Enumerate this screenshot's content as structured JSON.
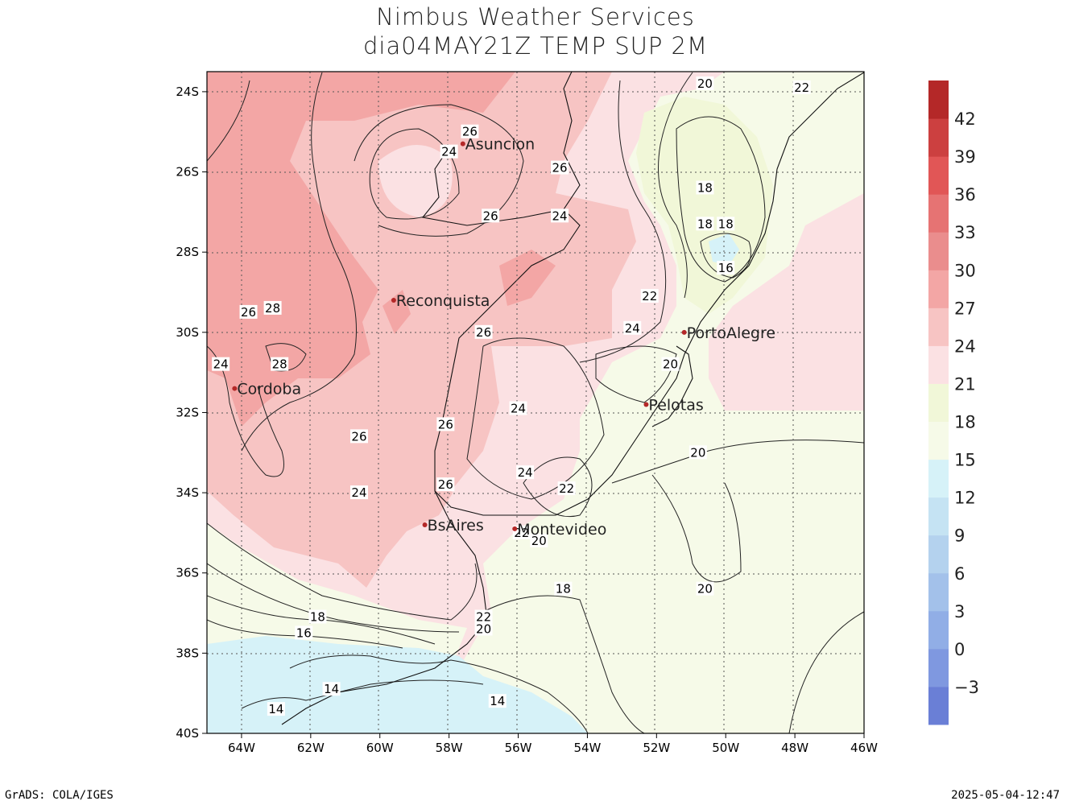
{
  "title": {
    "line1": "Nimbus Weather Services",
    "line2": "dia04MAY21Z TEMP SUP 2M"
  },
  "footer": {
    "left": "GrADS: COLA/IGES",
    "right": "2025-05-04-12:47"
  },
  "map": {
    "lon_range": [
      -65,
      -46
    ],
    "lat_range": [
      -40,
      -23.5
    ],
    "lat_ticks": [
      "24S",
      "26S",
      "28S",
      "30S",
      "32S",
      "34S",
      "36S",
      "38S",
      "40S"
    ],
    "lon_ticks": [
      "64W",
      "62W",
      "60W",
      "58W",
      "56W",
      "54W",
      "52W",
      "50W",
      "48W",
      "46W"
    ],
    "grid": "dotted",
    "cities": [
      {
        "name": "Asuncion",
        "lon": -57.6,
        "lat": -25.3
      },
      {
        "name": "Reconquista",
        "lon": -59.6,
        "lat": -29.2
      },
      {
        "name": "Cordoba",
        "lon": -64.2,
        "lat": -31.4
      },
      {
        "name": "PortoAlegre",
        "lon": -51.2,
        "lat": -30.0
      },
      {
        "name": "Pelotas",
        "lon": -52.3,
        "lat": -31.8
      },
      {
        "name": "BsAires",
        "lon": -58.7,
        "lat": -34.8
      },
      {
        "name": "Montevideo",
        "lon": -56.1,
        "lat": -34.9
      }
    ],
    "contour_labels": [
      {
        "text": "20",
        "lon": -50.6,
        "lat": -23.8
      },
      {
        "text": "22",
        "lon": -47.8,
        "lat": -23.9
      },
      {
        "text": "26",
        "lon": -57.4,
        "lat": -25.0
      },
      {
        "text": "24",
        "lon": -58.0,
        "lat": -25.5
      },
      {
        "text": "26",
        "lon": -54.8,
        "lat": -25.9
      },
      {
        "text": "18",
        "lon": -50.6,
        "lat": -26.4
      },
      {
        "text": "26",
        "lon": -56.8,
        "lat": -27.1
      },
      {
        "text": "24",
        "lon": -54.8,
        "lat": -27.1
      },
      {
        "text": "18",
        "lon": -50.6,
        "lat": -27.3
      },
      {
        "text": "18",
        "lon": -50.0,
        "lat": -27.3
      },
      {
        "text": "16",
        "lon": -50.0,
        "lat": -28.4
      },
      {
        "text": "22",
        "lon": -52.2,
        "lat": -29.1
      },
      {
        "text": "28",
        "lon": -63.1,
        "lat": -29.4
      },
      {
        "text": "26",
        "lon": -63.8,
        "lat": -29.5
      },
      {
        "text": "24",
        "lon": -52.7,
        "lat": -29.9
      },
      {
        "text": "26",
        "lon": -57.0,
        "lat": -30.0
      },
      {
        "text": "20",
        "lon": -51.6,
        "lat": -30.8
      },
      {
        "text": "24",
        "lon": -64.6,
        "lat": -30.8
      },
      {
        "text": "28",
        "lon": -62.9,
        "lat": -30.8
      },
      {
        "text": "24",
        "lon": -56.0,
        "lat": -31.9
      },
      {
        "text": "26",
        "lon": -58.1,
        "lat": -32.3
      },
      {
        "text": "26",
        "lon": -60.6,
        "lat": -32.6
      },
      {
        "text": "20",
        "lon": -50.8,
        "lat": -33.0
      },
      {
        "text": "24",
        "lon": -55.8,
        "lat": -33.5
      },
      {
        "text": "26",
        "lon": -58.1,
        "lat": -33.8
      },
      {
        "text": "24",
        "lon": -60.6,
        "lat": -34.0
      },
      {
        "text": "22",
        "lon": -54.6,
        "lat": -33.9
      },
      {
        "text": "22",
        "lon": -55.9,
        "lat": -35.0
      },
      {
        "text": "20",
        "lon": -55.4,
        "lat": -35.2
      },
      {
        "text": "18",
        "lon": -54.7,
        "lat": -36.4
      },
      {
        "text": "20",
        "lon": -50.6,
        "lat": -36.4
      },
      {
        "text": "22",
        "lon": -57.0,
        "lat": -37.1
      },
      {
        "text": "18",
        "lon": -61.8,
        "lat": -37.1
      },
      {
        "text": "20",
        "lon": -57.0,
        "lat": -37.4
      },
      {
        "text": "16",
        "lon": -62.2,
        "lat": -37.5
      },
      {
        "text": "14",
        "lon": -61.4,
        "lat": -38.9
      },
      {
        "text": "14",
        "lon": -56.6,
        "lat": -39.2
      },
      {
        "text": "14",
        "lon": -63.0,
        "lat": -39.4
      }
    ]
  },
  "legend": {
    "colors": [
      "#6a7fd6",
      "#7f98e0",
      "#91aee6",
      "#a3c1ea",
      "#b4d2ee",
      "#c5e3f3",
      "#d6f2f8",
      "#f6fae8",
      "#f1f7d8",
      "#fbe1e3",
      "#f7c4c3",
      "#f3a6a5",
      "#ea8d8d",
      "#e67373",
      "#e15656",
      "#cc4040",
      "#b42828"
    ],
    "labels": [
      "−3",
      "0",
      "3",
      "6",
      "9",
      "12",
      "15",
      "18",
      "21",
      "24",
      "27",
      "30",
      "33",
      "36",
      "39",
      "42"
    ]
  }
}
